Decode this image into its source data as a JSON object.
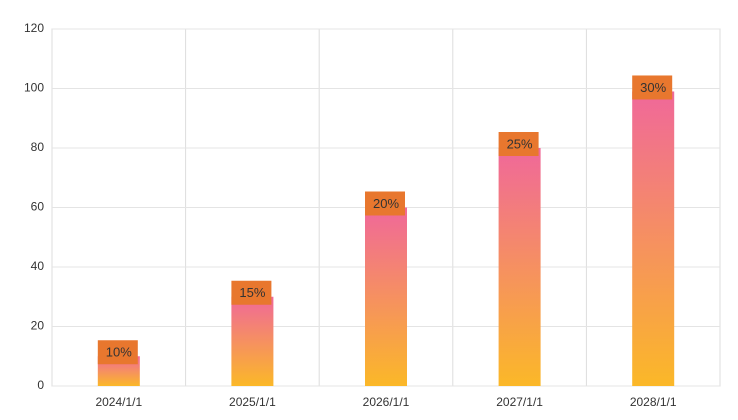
{
  "chart_data": {
    "type": "bar",
    "categories": [
      "2024/1/1",
      "2025/1/1",
      "2026/1/1",
      "2027/1/1",
      "2028/1/1"
    ],
    "values": [
      10,
      30,
      60,
      80,
      99
    ],
    "annotations": [
      "10%",
      "15%",
      "20%",
      "25%",
      "30%"
    ],
    "color_top": "#f0689a",
    "color_bottom": "#fbb828",
    "annotation_color": "#e8772e",
    "ylim": [
      0,
      120
    ],
    "yticks": [
      0,
      20,
      40,
      60,
      80,
      100,
      120
    ],
    "grid": true
  }
}
